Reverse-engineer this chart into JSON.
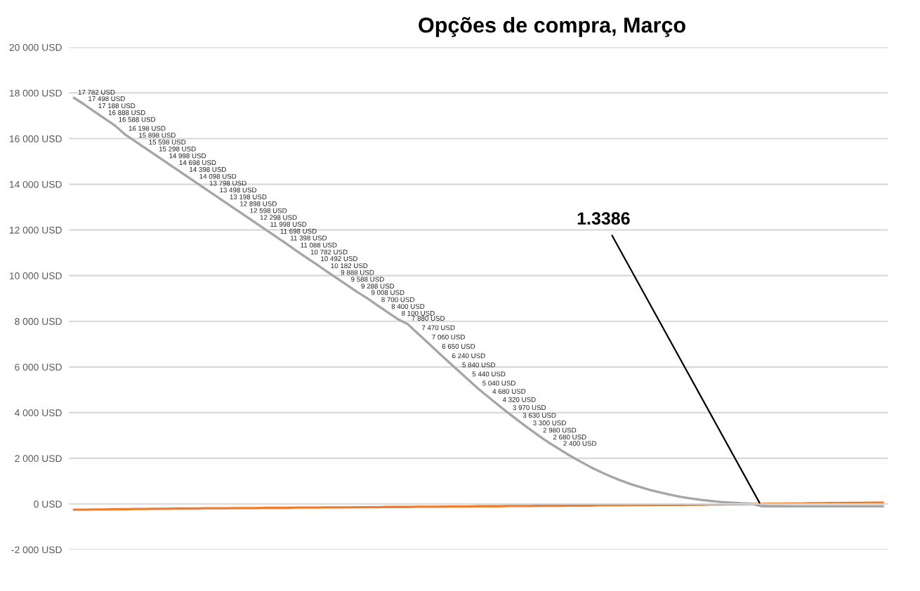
{
  "chart_data": {
    "type": "line",
    "title": "Opções de compra, Março",
    "categories": [
      null,
      null,
      null,
      null,
      null,
      null,
      null,
      null,
      null,
      null,
      null,
      null,
      null,
      null,
      null,
      null,
      null,
      null,
      null,
      null,
      null,
      null,
      null,
      null,
      null,
      null,
      null,
      null,
      null,
      null,
      null,
      null,
      null,
      null,
      null,
      null,
      null,
      null,
      null,
      null,
      null,
      null,
      null,
      null,
      null,
      null,
      null,
      null,
      null,
      null,
      null,
      null,
      null,
      null,
      null,
      null,
      null,
      null,
      null,
      null,
      null,
      null,
      null,
      null,
      null,
      null,
      null,
      null,
      null,
      null,
      null,
      null,
      null,
      null,
      null,
      null,
      null,
      null,
      null,
      null,
      null
    ],
    "series": [
      {
        "color": "#ed7d31",
        "values": [
          -250,
          -250,
          -240,
          -240,
          -230,
          -230,
          -220,
          -220,
          -210,
          -210,
          -200,
          -200,
          -200,
          -190,
          -190,
          -190,
          -180,
          -180,
          -180,
          -170,
          -170,
          -170,
          -160,
          -160,
          -160,
          -150,
          -150,
          -150,
          -140,
          -140,
          -140,
          -130,
          -130,
          -130,
          -120,
          -120,
          -120,
          -110,
          -110,
          -110,
          -100,
          -100,
          -100,
          -90,
          -90,
          -90,
          -80,
          -80,
          -80,
          -70,
          -70,
          -70,
          -60,
          -60,
          -60,
          -50,
          -50,
          -50,
          -40,
          -40,
          -40,
          -30,
          -30,
          -20,
          -20,
          -10,
          -10,
          0,
          0,
          10,
          10,
          20,
          20,
          30,
          30,
          40,
          40,
          50,
          50,
          60,
          60
        ]
      },
      {
        "color": "#a5a5a5",
        "values": [
          17782,
          17498,
          17188,
          16888,
          16588,
          16198,
          15898,
          15598,
          15298,
          14998,
          14698,
          14398,
          14098,
          13798,
          13498,
          13198,
          12898,
          12598,
          12298,
          11998,
          11698,
          11398,
          11088,
          10782,
          10492,
          10182,
          9888,
          9588,
          9288,
          9008,
          8700,
          8400,
          8100,
          7880,
          7470,
          7060,
          6650,
          6240,
          5840,
          5440,
          5040,
          4680,
          4320,
          3970,
          3630,
          3300,
          2980,
          2680,
          2400,
          2130,
          1880,
          1640,
          1420,
          1220,
          1040,
          880,
          740,
          610,
          500,
          400,
          310,
          240,
          180,
          130,
          90,
          60,
          30,
          10,
          -100,
          -100,
          -100,
          -100,
          -100,
          -100,
          -100,
          -100,
          -100,
          -100,
          -100,
          -100,
          -100
        ],
        "value_labels": [
          "17 782 USD",
          "17 498 USD",
          "17 188 USD",
          "16 888 USD",
          "16 588 USD",
          "16 198 USD",
          "15 898 USD",
          "15 598 USD",
          "15 298 USD",
          "14 998 USD",
          "14 698 USD",
          "14 398 USD",
          "14 098 USD",
          "13 798 USD",
          "13 498 USD",
          "13 198 USD",
          "12 898 USD",
          "12 598 USD",
          "12 298 USD",
          "11 998 USD",
          "11 698 USD",
          "11 398 USD",
          "11 088 USD",
          "10 782 USD",
          "10 492 USD",
          "10 182 USD",
          "9 888 USD",
          "9 588 USD",
          "9 288 USD",
          "9 008 USD",
          "8 700 USD",
          "8 400 USD",
          "8 100 USD",
          "7 880 USD",
          "7 470 USD",
          "7 060 USD",
          "6 650 USD",
          "6 240 USD",
          "5 840 USD",
          "5 440 USD",
          "5 040 USD",
          "4 680 USD",
          "4 320 USD",
          "3 970 USD",
          "3 630 USD",
          "3 300 USD",
          "2 980 USD",
          "2 680 USD",
          "2 400 USD",
          null,
          null,
          null,
          null,
          null,
          null,
          null,
          null,
          null,
          null,
          null,
          null,
          null,
          null,
          null,
          null,
          null,
          null,
          null,
          null,
          null,
          null,
          null,
          null,
          null,
          null,
          null,
          null,
          null,
          null,
          null,
          null
        ]
      }
    ],
    "ylim": [
      -2000,
      20000
    ],
    "yticks": [
      {
        "value": -2000,
        "label": "-2 000 USD"
      },
      {
        "value": 0,
        "label": "0 USD"
      },
      {
        "value": 2000,
        "label": "2 000 USD"
      },
      {
        "value": 4000,
        "label": "4 000 USD"
      },
      {
        "value": 6000,
        "label": "6 000 USD"
      },
      {
        "value": 8000,
        "label": "8 000 USD"
      },
      {
        "value": 10000,
        "label": "10 000 USD"
      },
      {
        "value": 12000,
        "label": "12 000 USD"
      },
      {
        "value": 14000,
        "label": "14 000 USD"
      },
      {
        "value": 16000,
        "label": "16 000 USD"
      },
      {
        "value": 18000,
        "label": "18 000 USD"
      },
      {
        "value": 20000,
        "label": "20 000 USD"
      }
    ],
    "grid": "y",
    "marker": "none",
    "line_style": "solid",
    "annotations": [
      "1.3386"
    ]
  }
}
